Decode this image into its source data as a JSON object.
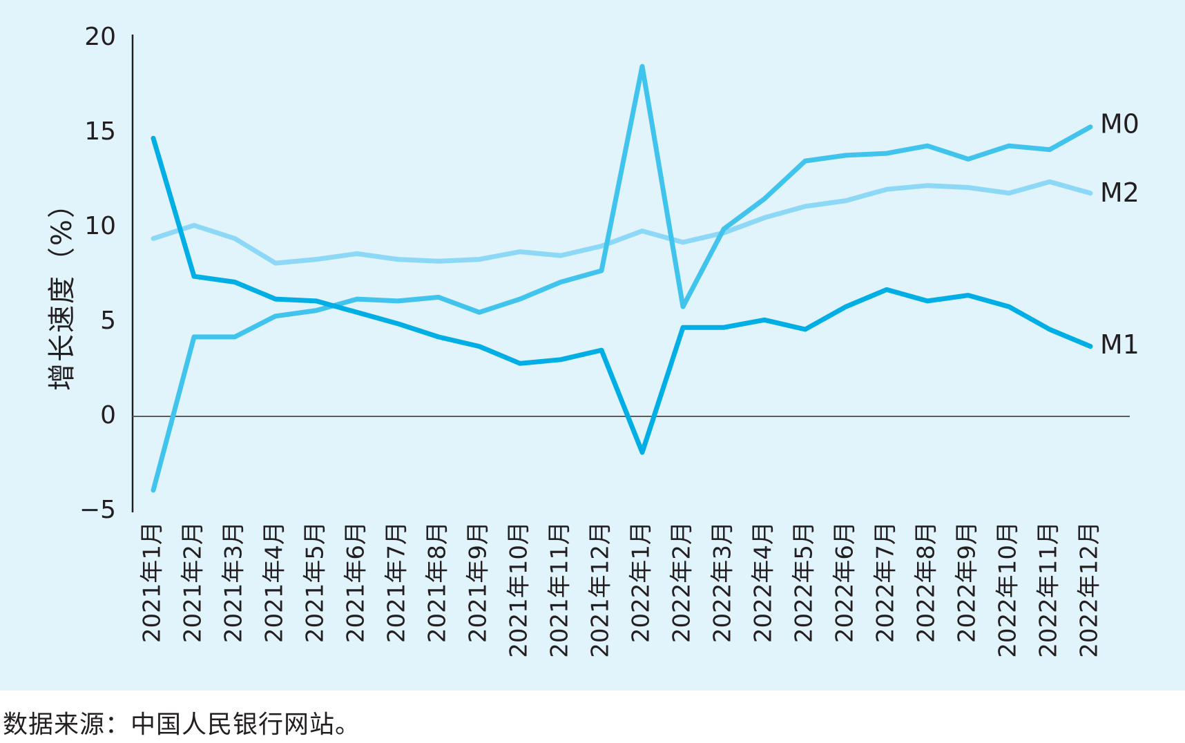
{
  "chart_data": {
    "type": "line",
    "title": "",
    "xlabel": "",
    "ylabel": "增长速度（%）",
    "ylim": [
      -5,
      20
    ],
    "yticks": [
      "−5",
      "0",
      "5",
      "10",
      "15",
      "20"
    ],
    "ytick_values": [
      -5,
      0,
      5,
      10,
      15,
      20
    ],
    "grid": false,
    "zero_line": true,
    "categories": [
      "2021年1月",
      "2021年2月",
      "2021年3月",
      "2021年4月",
      "2021年5月",
      "2021年6月",
      "2021年7月",
      "2021年8月",
      "2021年9月",
      "2021年10月",
      "2021年11月",
      "2021年12月",
      "2022年1月",
      "2022年2月",
      "2022年3月",
      "2022年4月",
      "2022年5月",
      "2022年6月",
      "2022年7月",
      "2022年8月",
      "2022年9月",
      "2022年10月",
      "2022年11月",
      "2022年12月"
    ],
    "series": [
      {
        "name": "M0",
        "color": "#40c4ee",
        "values": [
          -3.9,
          4.2,
          4.2,
          5.3,
          5.6,
          6.2,
          6.1,
          6.3,
          5.5,
          6.2,
          7.1,
          7.7,
          18.5,
          5.8,
          9.9,
          11.5,
          13.5,
          13.8,
          13.9,
          14.3,
          13.6,
          14.3,
          14.1,
          15.3
        ]
      },
      {
        "name": "M1",
        "color": "#00aee6",
        "values": [
          14.7,
          7.4,
          7.1,
          6.2,
          6.1,
          5.5,
          4.9,
          4.2,
          3.7,
          2.8,
          3.0,
          3.5,
          -1.9,
          4.7,
          4.7,
          5.1,
          4.6,
          5.8,
          6.7,
          6.1,
          6.4,
          5.8,
          4.6,
          3.7
        ]
      },
      {
        "name": "M2",
        "color": "#8cd8f6",
        "values": [
          9.4,
          10.1,
          9.4,
          8.1,
          8.3,
          8.6,
          8.3,
          8.2,
          8.3,
          8.7,
          8.5,
          9.0,
          9.8,
          9.2,
          9.7,
          10.5,
          11.1,
          11.4,
          12.0,
          12.2,
          12.1,
          11.8,
          12.4,
          11.8
        ]
      }
    ]
  },
  "source": "数据来源：中国人民银行网站。"
}
